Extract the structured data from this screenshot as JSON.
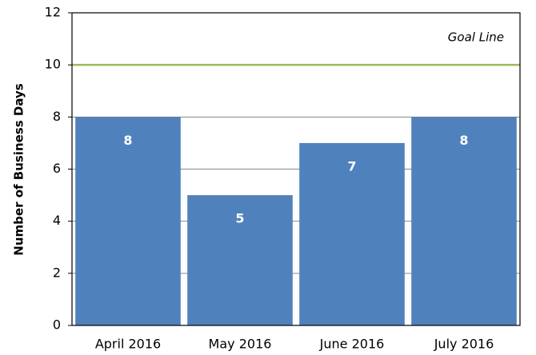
{
  "chart_data": {
    "type": "bar",
    "y_label": "Number of Business Days",
    "categories": [
      "April 2016",
      "May 2016",
      "June 2016",
      "July 2016"
    ],
    "values": [
      8,
      5,
      7,
      8
    ],
    "color": "#4f81bd",
    "ylim": [
      0,
      12
    ],
    "yticks": [
      0,
      2,
      4,
      6,
      8,
      10,
      12
    ],
    "grid": true,
    "goal_line": {
      "value": 10,
      "label": "Goal Line",
      "color": "#9bbb59"
    }
  }
}
